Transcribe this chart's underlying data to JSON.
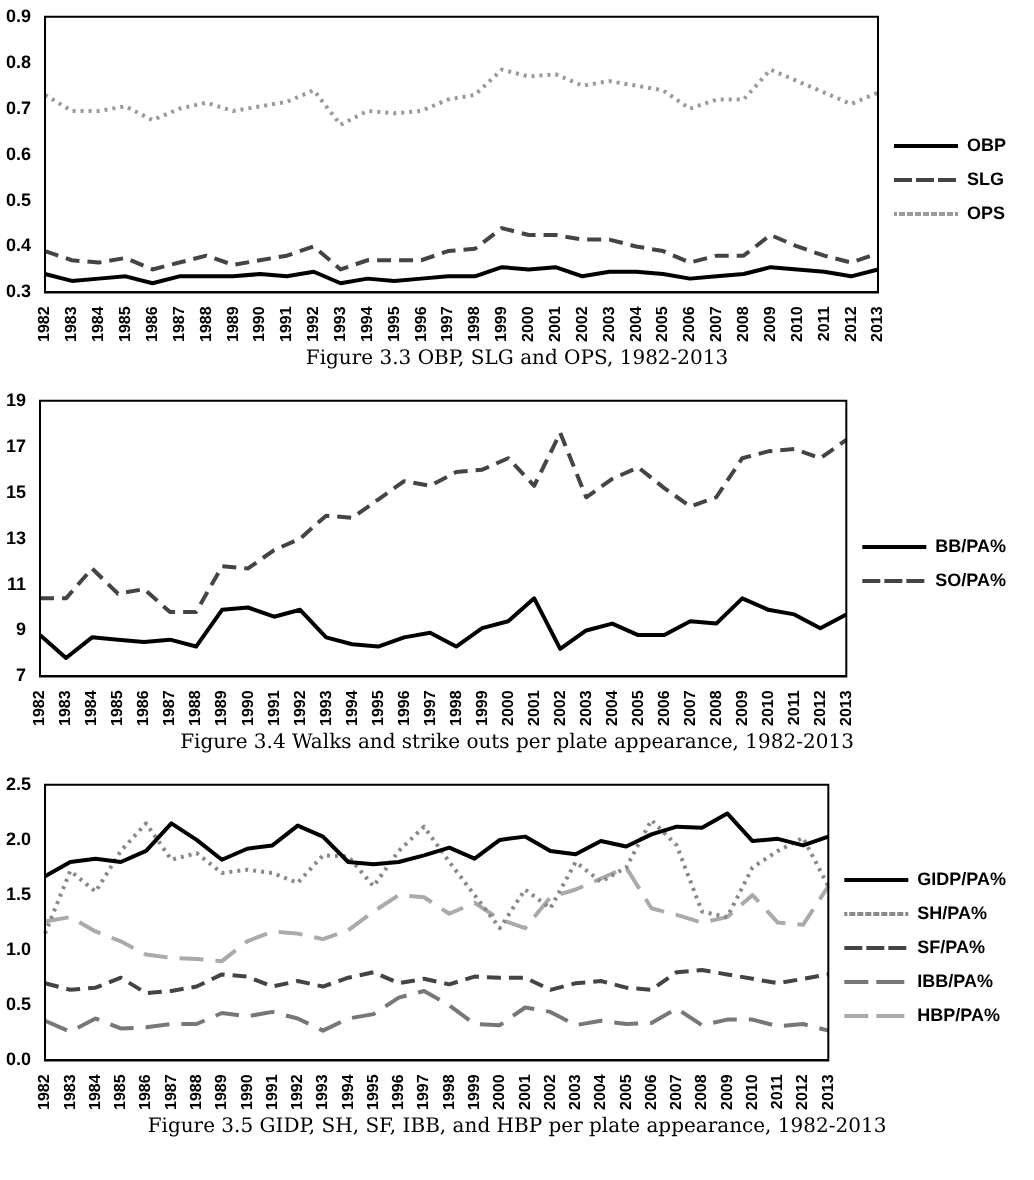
{
  "chart_data": [
    {
      "type": "line",
      "title": "Figure 3.3 OBP, SLG and OPS, 1982-2013",
      "categories": [
        "1982",
        "1983",
        "1984",
        "1985",
        "1986",
        "1987",
        "1988",
        "1989",
        "1990",
        "1991",
        "1992",
        "1993",
        "1994",
        "1995",
        "1996",
        "1997",
        "1998",
        "1999",
        "2000",
        "2001",
        "2002",
        "2003",
        "2004",
        "2005",
        "2006",
        "2007",
        "2008",
        "2009",
        "2010",
        "2011",
        "2012",
        "2013"
      ],
      "ylim": [
        0.3,
        0.9
      ],
      "yticks": [
        0.3,
        0.4,
        0.5,
        0.6,
        0.7,
        0.8,
        0.9
      ],
      "grid": false,
      "legend": "right",
      "marker": "none",
      "series": [
        {
          "name": "OBP",
          "color": "#000000",
          "line_style": "solid",
          "values": [
            0.34,
            0.325,
            0.33,
            0.335,
            0.32,
            0.335,
            0.335,
            0.335,
            0.34,
            0.335,
            0.345,
            0.32,
            0.33,
            0.325,
            0.33,
            0.335,
            0.335,
            0.355,
            0.35,
            0.355,
            0.335,
            0.345,
            0.345,
            0.34,
            0.33,
            0.335,
            0.34,
            0.355,
            0.35,
            0.345,
            0.335,
            0.35
          ]
        },
        {
          "name": "SLG",
          "color": "#444444",
          "line_style": "dashed",
          "values": [
            0.39,
            0.37,
            0.365,
            0.375,
            0.35,
            0.365,
            0.38,
            0.36,
            0.37,
            0.38,
            0.4,
            0.35,
            0.37,
            0.37,
            0.37,
            0.39,
            0.395,
            0.44,
            0.425,
            0.425,
            0.415,
            0.415,
            0.4,
            0.39,
            0.365,
            0.38,
            0.38,
            0.425,
            0.4,
            0.38,
            0.365,
            0.385
          ]
        },
        {
          "name": "OPS",
          "color": "#999999",
          "line_style": "dotted",
          "values": [
            0.73,
            0.695,
            0.695,
            0.705,
            0.675,
            0.7,
            0.713,
            0.695,
            0.705,
            0.715,
            0.74,
            0.665,
            0.695,
            0.69,
            0.695,
            0.72,
            0.73,
            0.785,
            0.77,
            0.775,
            0.75,
            0.76,
            0.75,
            0.74,
            0.7,
            0.72,
            0.72,
            0.785,
            0.76,
            0.735,
            0.71,
            0.735
          ]
        }
      ]
    },
    {
      "type": "line",
      "title": "Figure 3.4 Walks and strike outs per plate appearance, 1982-2013",
      "categories": [
        "1982",
        "1983",
        "1984",
        "1985",
        "1986",
        "1987",
        "1988",
        "1989",
        "1990",
        "1991",
        "1992",
        "1993",
        "1994",
        "1995",
        "1996",
        "1997",
        "1998",
        "1999",
        "2000",
        "2001",
        "2002",
        "2003",
        "2004",
        "2005",
        "2006",
        "2007",
        "2008",
        "2009",
        "2010",
        "2011",
        "2012",
        "2013"
      ],
      "ylim": [
        7,
        19
      ],
      "yticks": [
        7,
        9,
        11,
        13,
        15,
        17,
        19
      ],
      "grid": false,
      "legend": "right",
      "marker": "none",
      "series": [
        {
          "name": "BB/PA%",
          "color": "#000000",
          "line_style": "solid",
          "values": [
            8.8,
            7.8,
            8.7,
            8.6,
            8.5,
            8.6,
            8.3,
            9.9,
            10.0,
            9.6,
            9.9,
            8.7,
            8.4,
            8.3,
            8.7,
            8.9,
            8.3,
            9.1,
            9.4,
            10.4,
            8.2,
            9.0,
            9.3,
            8.8,
            8.8,
            9.4,
            9.3,
            10.4,
            9.9,
            9.7,
            9.1,
            9.7
          ]
        },
        {
          "name": "SO/PA%",
          "color": "#444444",
          "line_style": "dashed",
          "values": [
            10.4,
            10.4,
            11.7,
            10.6,
            10.8,
            9.8,
            9.8,
            11.8,
            11.7,
            12.5,
            13.0,
            14.0,
            13.9,
            14.7,
            15.5,
            15.3,
            15.9,
            16.0,
            16.5,
            15.3,
            17.6,
            14.8,
            15.6,
            16.1,
            15.2,
            14.4,
            14.8,
            16.5,
            16.8,
            16.9,
            16.5,
            17.3
          ]
        }
      ]
    },
    {
      "type": "line",
      "title": "Figure 3.5 GIDP, SH, SF, IBB, and HBP per plate appearance, 1982-2013",
      "categories": [
        "1982",
        "1983",
        "1984",
        "1985",
        "1986",
        "1987",
        "1988",
        "1989",
        "1990",
        "1991",
        "1992",
        "1993",
        "1994",
        "1995",
        "1996",
        "1997",
        "1998",
        "1999",
        "2000",
        "2001",
        "2002",
        "2003",
        "2004",
        "2005",
        "2006",
        "2007",
        "2008",
        "2009",
        "2010",
        "2011",
        "2012",
        "2013"
      ],
      "ylim": [
        0,
        2.5
      ],
      "yticks": [
        {
          "value": 0,
          "label": "0.0"
        },
        0.5,
        {
          "value": 1,
          "label": "1.0"
        },
        1.5,
        {
          "value": 2,
          "label": "2.0"
        },
        2.5
      ],
      "grid": false,
      "legend": "right",
      "marker": "none",
      "series": [
        {
          "name": "GIDP/PA%",
          "color": "#000000",
          "line_style": "solid",
          "values": [
            1.67,
            1.8,
            1.83,
            1.8,
            1.9,
            2.15,
            2.0,
            1.82,
            1.92,
            1.95,
            2.13,
            2.03,
            1.8,
            1.78,
            1.8,
            1.86,
            1.93,
            1.83,
            2.0,
            2.03,
            1.9,
            1.87,
            1.99,
            1.94,
            2.05,
            2.12,
            2.11,
            2.24,
            1.99,
            2.01,
            1.95,
            2.03
          ]
        },
        {
          "name": "SH/PA%",
          "color": "#888888",
          "line_style": "dotted",
          "values": [
            1.15,
            1.72,
            1.53,
            1.9,
            2.15,
            1.82,
            1.88,
            1.7,
            1.73,
            1.7,
            1.61,
            1.86,
            1.85,
            1.58,
            1.9,
            2.12,
            1.8,
            1.5,
            1.2,
            1.55,
            1.38,
            1.8,
            1.62,
            1.75,
            2.18,
            1.95,
            1.35,
            1.3,
            1.75,
            1.9,
            2.02,
            1.58
          ]
        },
        {
          "name": "SF/PA%",
          "color": "#444444",
          "line_style": "dashed",
          "values": [
            0.7,
            0.64,
            0.66,
            0.75,
            0.61,
            0.63,
            0.67,
            0.78,
            0.76,
            0.67,
            0.72,
            0.67,
            0.75,
            0.8,
            0.7,
            0.74,
            0.69,
            0.76,
            0.75,
            0.75,
            0.64,
            0.7,
            0.72,
            0.66,
            0.64,
            0.8,
            0.82,
            0.78,
            0.74,
            0.7,
            0.74,
            0.78
          ]
        },
        {
          "name": "IBB/PA%",
          "color": "#777777",
          "line_style": "dashed",
          "values": [
            0.36,
            0.26,
            0.38,
            0.29,
            0.3,
            0.33,
            0.33,
            0.43,
            0.4,
            0.44,
            0.38,
            0.27,
            0.38,
            0.42,
            0.57,
            0.63,
            0.5,
            0.33,
            0.32,
            0.48,
            0.44,
            0.32,
            0.36,
            0.33,
            0.34,
            0.47,
            0.32,
            0.37,
            0.37,
            0.31,
            0.33,
            0.27
          ]
        },
        {
          "name": "HBP/PA%",
          "color": "#aaaaaa",
          "line_style": "dashed",
          "values": [
            1.26,
            1.3,
            1.17,
            1.08,
            0.96,
            0.93,
            0.92,
            0.9,
            1.08,
            1.17,
            1.15,
            1.1,
            1.18,
            1.35,
            1.5,
            1.48,
            1.33,
            1.43,
            1.28,
            1.2,
            1.48,
            1.55,
            1.65,
            1.75,
            1.38,
            1.32,
            1.25,
            1.3,
            1.5,
            1.25,
            1.23,
            1.58
          ]
        }
      ]
    }
  ]
}
